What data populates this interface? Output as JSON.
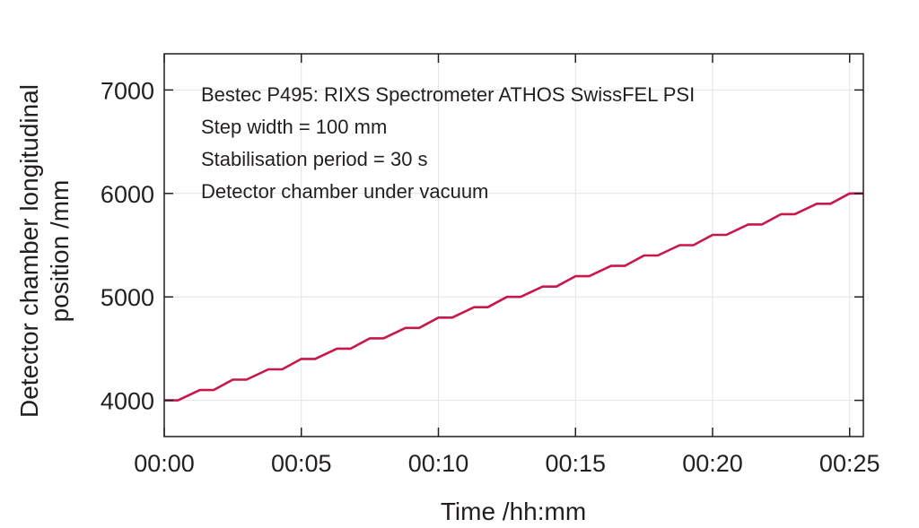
{
  "chart_data": {
    "type": "line",
    "title": "",
    "xlabel": "Time /hh:mm",
    "ylabel": "Detector chamber longitudinal position /mm",
    "ylabel_lines": [
      "Detector chamber longitudinal",
      "position /mm"
    ],
    "xlim": [
      "00:00",
      "00:25.5"
    ],
    "ylim": [
      3650,
      7350
    ],
    "xticks": [
      "00:00",
      "00:05",
      "00:10",
      "00:15",
      "00:20",
      "00:25"
    ],
    "yticks": [
      4000,
      5000,
      6000,
      7000
    ],
    "grid": true,
    "annotations": [
      "Bestec P495: RIXS Spectrometer ATHOS SwissFEL PSI",
      "Step width = 100 mm",
      "Stabilisation period = 30 s",
      "Detector chamber under vacuum"
    ],
    "series": [
      {
        "color": "#c8174a",
        "x": [
          "00:00",
          "00:00.5",
          "00:01.3",
          "00:01.8",
          "00:02.5",
          "00:03.0",
          "00:03.8",
          "00:04.3",
          "00:05.0",
          "00:05.5",
          "00:06.3",
          "00:06.8",
          "00:07.5",
          "00:08.0",
          "00:08.8",
          "00:09.3",
          "00:10.0",
          "00:10.5",
          "00:11.3",
          "00:11.8",
          "00:12.5",
          "00:13.0",
          "00:13.8",
          "00:14.3",
          "00:15.0",
          "00:15.5",
          "00:16.3",
          "00:16.8",
          "00:17.5",
          "00:18.0",
          "00:18.8",
          "00:19.3",
          "00:20.0",
          "00:20.5",
          "00:21.3",
          "00:21.8",
          "00:22.5",
          "00:23.0",
          "00:23.8",
          "00:24.3",
          "00:25.0",
          "00:25.5"
        ],
        "y": [
          4000,
          4000,
          4100,
          4100,
          4200,
          4200,
          4300,
          4300,
          4400,
          4400,
          4500,
          4500,
          4600,
          4600,
          4700,
          4700,
          4800,
          4800,
          4900,
          4900,
          5000,
          5000,
          5100,
          5100,
          5200,
          5200,
          5300,
          5300,
          5400,
          5400,
          5500,
          5500,
          5600,
          5600,
          5700,
          5700,
          5800,
          5800,
          5900,
          5900,
          6000,
          6000
        ]
      }
    ]
  }
}
